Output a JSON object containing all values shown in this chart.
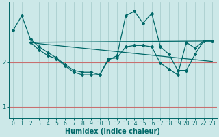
{
  "xlabel": "Humidex (Indice chaleur)",
  "ylabel": "",
  "bg_color": "#cce8e8",
  "grid_color": "#aacece",
  "line_color": "#006868",
  "xlim": [
    -0.5,
    23.5
  ],
  "ylim": [
    0.75,
    3.35
  ],
  "yticks": [
    1,
    2
  ],
  "xticks": [
    0,
    1,
    2,
    3,
    4,
    5,
    6,
    7,
    8,
    9,
    10,
    11,
    12,
    13,
    14,
    15,
    16,
    17,
    18,
    19,
    20,
    21,
    22,
    23
  ],
  "curve1_x": [
    0,
    1,
    2,
    3,
    4,
    5,
    6,
    7,
    8,
    9,
    10,
    11,
    12,
    13,
    14,
    15,
    16,
    17,
    18,
    19,
    20,
    21,
    22,
    23
  ],
  "curve1_y": [
    2.72,
    3.05,
    2.52,
    2.35,
    2.22,
    2.1,
    1.95,
    1.82,
    1.78,
    1.78,
    1.72,
    2.05,
    2.15,
    3.05,
    3.15,
    2.88,
    3.1,
    2.35,
    2.18,
    1.82,
    1.82,
    2.18,
    2.48,
    2.48
  ],
  "curve2_x": [
    2,
    3,
    4,
    5,
    6,
    7,
    8,
    9,
    10,
    11,
    12,
    13,
    14,
    15,
    16,
    17,
    18,
    19,
    20,
    21,
    22,
    23
  ],
  "curve2_y": [
    2.45,
    2.42,
    2.4,
    2.38,
    2.36,
    2.34,
    2.32,
    2.3,
    2.28,
    2.26,
    2.24,
    2.22,
    2.2,
    2.18,
    2.16,
    2.14,
    2.12,
    2.1,
    2.08,
    2.06,
    2.04,
    2.02
  ],
  "curve3_x": [
    2,
    3,
    4,
    5,
    6,
    7,
    8,
    9,
    10,
    11,
    12,
    13,
    14,
    15,
    16,
    17,
    18,
    19,
    20,
    21,
    22,
    23
  ],
  "curve3_y": [
    2.45,
    2.28,
    2.15,
    2.08,
    1.92,
    1.78,
    1.72,
    1.72,
    1.72,
    2.08,
    2.1,
    2.35,
    2.38,
    2.38,
    2.35,
    1.98,
    1.85,
    1.72,
    2.45,
    2.32,
    2.48,
    2.48
  ],
  "curve4_x": [
    2,
    23
  ],
  "curve4_y": [
    2.45,
    2.48
  ],
  "hline_y": [
    1,
    2
  ],
  "hline_color": "#c87070"
}
